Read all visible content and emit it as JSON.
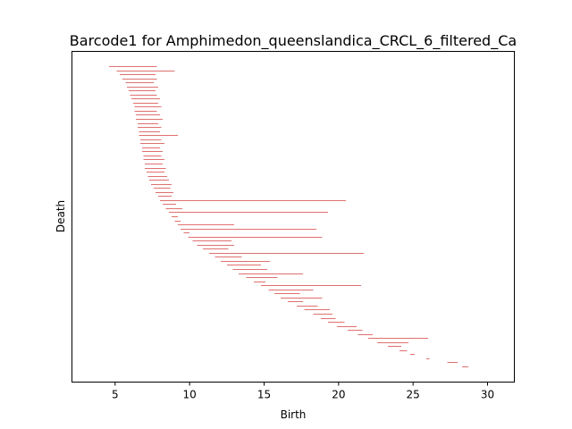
{
  "chart_data": {
    "type": "barcode",
    "title": "Barcode1 for Amphimedon_queenslandica_CRCL_6_filtered_Ca",
    "xlabel": "Birth",
    "ylabel": "Death",
    "xlim": [
      2.1,
      31.8
    ],
    "xticks": [
      5,
      10,
      15,
      20,
      25,
      30
    ],
    "y_ticks_visible": false,
    "grid": false,
    "bar_color": "#e07070",
    "bars": [
      {
        "rank": 1,
        "birth": 4.6,
        "death": 7.8
      },
      {
        "rank": 2,
        "birth": 5.1,
        "death": 9.0
      },
      {
        "rank": 3,
        "birth": 5.3,
        "death": 7.7
      },
      {
        "rank": 4,
        "birth": 5.5,
        "death": 7.8
      },
      {
        "rank": 5,
        "birth": 5.7,
        "death": 7.6
      },
      {
        "rank": 6,
        "birth": 5.8,
        "death": 7.9
      },
      {
        "rank": 7,
        "birth": 5.9,
        "death": 7.7
      },
      {
        "rank": 8,
        "birth": 6.0,
        "death": 7.8
      },
      {
        "rank": 9,
        "birth": 6.1,
        "death": 8.0
      },
      {
        "rank": 10,
        "birth": 6.2,
        "death": 7.9
      },
      {
        "rank": 11,
        "birth": 6.3,
        "death": 8.1
      },
      {
        "rank": 12,
        "birth": 6.3,
        "death": 7.8
      },
      {
        "rank": 13,
        "birth": 6.4,
        "death": 8.0
      },
      {
        "rank": 14,
        "birth": 6.4,
        "death": 8.2
      },
      {
        "rank": 15,
        "birth": 6.5,
        "death": 7.9
      },
      {
        "rank": 16,
        "birth": 6.5,
        "death": 8.1
      },
      {
        "rank": 17,
        "birth": 6.6,
        "death": 8.0
      },
      {
        "rank": 18,
        "birth": 6.6,
        "death": 9.2
      },
      {
        "rank": 19,
        "birth": 6.7,
        "death": 8.1
      },
      {
        "rank": 20,
        "birth": 6.7,
        "death": 8.3
      },
      {
        "rank": 21,
        "birth": 6.8,
        "death": 8.0
      },
      {
        "rank": 22,
        "birth": 6.8,
        "death": 8.2
      },
      {
        "rank": 23,
        "birth": 6.9,
        "death": 8.1
      },
      {
        "rank": 24,
        "birth": 6.9,
        "death": 8.3
      },
      {
        "rank": 25,
        "birth": 7.0,
        "death": 8.2
      },
      {
        "rank": 26,
        "birth": 7.0,
        "death": 8.4
      },
      {
        "rank": 27,
        "birth": 7.1,
        "death": 8.3
      },
      {
        "rank": 28,
        "birth": 7.2,
        "death": 8.5
      },
      {
        "rank": 29,
        "birth": 7.3,
        "death": 8.6
      },
      {
        "rank": 30,
        "birth": 7.4,
        "death": 8.8
      },
      {
        "rank": 31,
        "birth": 7.6,
        "death": 8.7
      },
      {
        "rank": 32,
        "birth": 7.7,
        "death": 8.9
      },
      {
        "rank": 33,
        "birth": 7.9,
        "death": 8.8
      },
      {
        "rank": 34,
        "birth": 8.0,
        "death": 20.5
      },
      {
        "rank": 35,
        "birth": 8.2,
        "death": 9.1
      },
      {
        "rank": 36,
        "birth": 8.4,
        "death": 9.5
      },
      {
        "rank": 37,
        "birth": 8.6,
        "death": 19.3
      },
      {
        "rank": 38,
        "birth": 8.8,
        "death": 9.2
      },
      {
        "rank": 39,
        "birth": 9.0,
        "death": 9.4
      },
      {
        "rank": 40,
        "birth": 9.2,
        "death": 13.0
      },
      {
        "rank": 41,
        "birth": 9.4,
        "death": 18.5
      },
      {
        "rank": 42,
        "birth": 9.6,
        "death": 10.0
      },
      {
        "rank": 43,
        "birth": 9.9,
        "death": 18.9
      },
      {
        "rank": 44,
        "birth": 10.2,
        "death": 12.8
      },
      {
        "rank": 45,
        "birth": 10.5,
        "death": 13.0
      },
      {
        "rank": 46,
        "birth": 10.9,
        "death": 12.6
      },
      {
        "rank": 47,
        "birth": 11.3,
        "death": 21.7
      },
      {
        "rank": 48,
        "birth": 11.7,
        "death": 13.5
      },
      {
        "rank": 49,
        "birth": 12.1,
        "death": 15.4
      },
      {
        "rank": 50,
        "birth": 12.5,
        "death": 14.8
      },
      {
        "rank": 51,
        "birth": 12.9,
        "death": 15.2
      },
      {
        "rank": 52,
        "birth": 13.3,
        "death": 17.6
      },
      {
        "rank": 53,
        "birth": 13.8,
        "death": 15.9
      },
      {
        "rank": 54,
        "birth": 14.3,
        "death": 15.1
      },
      {
        "rank": 55,
        "birth": 14.8,
        "death": 21.5
      },
      {
        "rank": 56,
        "birth": 15.3,
        "death": 18.3
      },
      {
        "rank": 57,
        "birth": 15.7,
        "death": 17.4
      },
      {
        "rank": 58,
        "birth": 16.1,
        "death": 18.9
      },
      {
        "rank": 59,
        "birth": 16.6,
        "death": 17.6
      },
      {
        "rank": 60,
        "birth": 17.2,
        "death": 18.6
      },
      {
        "rank": 61,
        "birth": 17.7,
        "death": 19.4
      },
      {
        "rank": 62,
        "birth": 18.3,
        "death": 19.6
      },
      {
        "rank": 63,
        "birth": 18.8,
        "death": 19.8
      },
      {
        "rank": 64,
        "birth": 19.3,
        "death": 20.4
      },
      {
        "rank": 65,
        "birth": 19.9,
        "death": 21.2
      },
      {
        "rank": 66,
        "birth": 20.6,
        "death": 21.6
      },
      {
        "rank": 67,
        "birth": 21.3,
        "death": 22.3
      },
      {
        "rank": 68,
        "birth": 22.0,
        "death": 26.0
      },
      {
        "rank": 69,
        "birth": 22.6,
        "death": 24.7
      },
      {
        "rank": 70,
        "birth": 23.3,
        "death": 24.2
      },
      {
        "rank": 71,
        "birth": 24.1,
        "death": 24.6
      },
      {
        "rank": 72,
        "birth": 24.8,
        "death": 25.1
      },
      {
        "rank": 73,
        "birth": 25.9,
        "death": 26.1
      },
      {
        "rank": 74,
        "birth": 27.3,
        "death": 28.0
      },
      {
        "rank": 75,
        "birth": 28.3,
        "death": 28.7
      }
    ]
  }
}
